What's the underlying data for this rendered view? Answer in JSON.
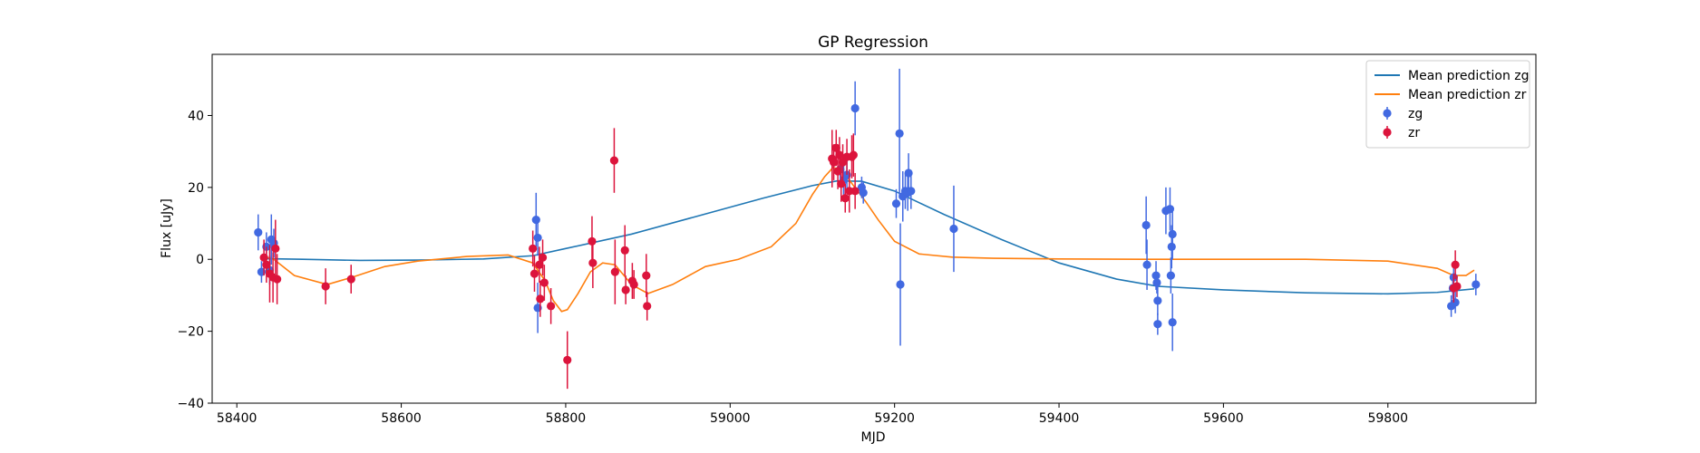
{
  "chart_data": {
    "type": "scatter",
    "title": "GP Regression",
    "xlabel": "MJD",
    "ylabel": "Flux [uJy]",
    "xlim": [
      58370,
      59980
    ],
    "ylim": [
      -40,
      57
    ],
    "xticks": [
      58400,
      58600,
      58800,
      59000,
      59200,
      59400,
      59600,
      59800
    ],
    "yticks": [
      -40,
      -20,
      0,
      20,
      40
    ],
    "legend_position": "upper right",
    "colors": {
      "zg_line": "#1f77b4",
      "zr_line": "#ff7f0e",
      "zg_points": "#4169e1",
      "zr_points": "#dc143c"
    },
    "legend": [
      {
        "label": "Mean prediction zg",
        "kind": "line",
        "series": "zg_line"
      },
      {
        "label": "Mean prediction zr",
        "kind": "line",
        "series": "zr_line"
      },
      {
        "label": "zg",
        "kind": "errorbar",
        "series": "zg_points"
      },
      {
        "label": "zr",
        "kind": "errorbar",
        "series": "zr_points"
      }
    ],
    "lines": [
      {
        "name": "Mean prediction zg",
        "color": "#1f77b4",
        "x": [
          58430,
          58480,
          58550,
          58620,
          58700,
          58760,
          58800,
          58880,
          58960,
          59040,
          59100,
          59130,
          59160,
          59200,
          59260,
          59330,
          59400,
          59470,
          59520,
          59600,
          59700,
          59800,
          59860,
          59905
        ],
        "y": [
          0.2,
          0,
          -0.3,
          -0.2,
          0.1,
          1.0,
          3.0,
          7.0,
          12.0,
          17.0,
          20.5,
          21.8,
          21.7,
          19.0,
          12.5,
          5.5,
          -1.0,
          -5.5,
          -7.5,
          -8.5,
          -9.3,
          -9.6,
          -9.2,
          -8.2
        ]
      },
      {
        "name": "Mean prediction zr",
        "color": "#ff7f0e",
        "x": [
          58430,
          58445,
          58470,
          58510,
          58540,
          58580,
          58620,
          58680,
          58730,
          58760,
          58775,
          58785,
          58795,
          58802,
          58815,
          58830,
          58845,
          58860,
          58880,
          58900,
          58930,
          58970,
          59010,
          59050,
          59080,
          59100,
          59115,
          59125,
          59135,
          59145,
          59155,
          59165,
          59180,
          59200,
          59230,
          59270,
          59320,
          59400,
          59500,
          59600,
          59700,
          59800,
          59860,
          59880,
          59895,
          59905
        ],
        "y": [
          1.0,
          0.0,
          -4.5,
          -7.0,
          -5.0,
          -2.0,
          -0.5,
          0.8,
          1.2,
          -1.0,
          -6.0,
          -11.5,
          -14.5,
          -14.0,
          -9.5,
          -3.5,
          -1.0,
          -1.5,
          -7.0,
          -9.5,
          -7.0,
          -2.0,
          0.0,
          3.5,
          10.0,
          18.0,
          23.0,
          25.5,
          25.0,
          22.0,
          19.0,
          16.0,
          11.0,
          5.0,
          1.5,
          0.6,
          0.3,
          0.1,
          0.0,
          0.0,
          0.0,
          -0.5,
          -2.5,
          -4.5,
          -4.5,
          -3.0
        ]
      }
    ],
    "series": [
      {
        "name": "zg",
        "color": "#4169e1",
        "points": [
          {
            "x": 58426,
            "y": 7.5,
            "err": 5
          },
          {
            "x": 58430,
            "y": -3.5,
            "err": 3
          },
          {
            "x": 58436,
            "y": 3.5,
            "err": 4
          },
          {
            "x": 58440,
            "y": -3.0,
            "err": 4
          },
          {
            "x": 58442,
            "y": 5.5,
            "err": 7
          },
          {
            "x": 58445,
            "y": 4.5,
            "err": 4
          },
          {
            "x": 58764,
            "y": 11.0,
            "err": 7.5
          },
          {
            "x": 58766,
            "y": 6.0,
            "err": 5
          },
          {
            "x": 58766,
            "y": -13.5,
            "err": 7
          },
          {
            "x": 59134,
            "y": 25.0,
            "err": 5
          },
          {
            "x": 59138,
            "y": 22.0,
            "err": 4
          },
          {
            "x": 59142,
            "y": 23.5,
            "err": 5
          },
          {
            "x": 59152,
            "y": 42.0,
            "err": 7.5
          },
          {
            "x": 59160,
            "y": 20.0,
            "err": 3
          },
          {
            "x": 59162,
            "y": 18.5,
            "err": 3
          },
          {
            "x": 59202,
            "y": 15.5,
            "err": 4
          },
          {
            "x": 59206,
            "y": 35.0,
            "err": 18
          },
          {
            "x": 59207,
            "y": -7.0,
            "err": 17
          },
          {
            "x": 59210,
            "y": 17.5,
            "err": 7
          },
          {
            "x": 59213,
            "y": 19.0,
            "err": 5
          },
          {
            "x": 59216,
            "y": 18.5,
            "err": 5
          },
          {
            "x": 59217,
            "y": 24.0,
            "err": 5.5
          },
          {
            "x": 59220,
            "y": 19.0,
            "err": 5
          },
          {
            "x": 59272,
            "y": 8.5,
            "err": 12
          },
          {
            "x": 59506,
            "y": 9.5,
            "err": 8
          },
          {
            "x": 59507,
            "y": -1.5,
            "err": 7
          },
          {
            "x": 59518,
            "y": -4.5,
            "err": 4
          },
          {
            "x": 59519,
            "y": -6.5,
            "err": 3
          },
          {
            "x": 59520,
            "y": -11.5,
            "err": 4
          },
          {
            "x": 59520,
            "y": -18.0,
            "err": 3
          },
          {
            "x": 59530,
            "y": 13.5,
            "err": 6.5
          },
          {
            "x": 59535,
            "y": 14.0,
            "err": 6
          },
          {
            "x": 59536,
            "y": -4.5,
            "err": 5
          },
          {
            "x": 59537,
            "y": 3.5,
            "err": 6
          },
          {
            "x": 59538,
            "y": 7.0,
            "err": 7
          },
          {
            "x": 59538,
            "y": -17.5,
            "err": 8
          },
          {
            "x": 59877,
            "y": -13.0,
            "err": 3
          },
          {
            "x": 59879,
            "y": -8.0,
            "err": 3
          },
          {
            "x": 59880,
            "y": -5.0,
            "err": 3
          },
          {
            "x": 59882,
            "y": -12.0,
            "err": 3
          },
          {
            "x": 59907,
            "y": -7.0,
            "err": 3
          }
        ]
      },
      {
        "name": "zr",
        "color": "#dc143c",
        "points": [
          {
            "x": 58433,
            "y": 0.5,
            "err": 5
          },
          {
            "x": 58436,
            "y": -1.5,
            "err": 5
          },
          {
            "x": 58440,
            "y": -4.0,
            "err": 8
          },
          {
            "x": 58444,
            "y": -5.0,
            "err": 7
          },
          {
            "x": 58447,
            "y": 3.0,
            "err": 8
          },
          {
            "x": 58449,
            "y": -5.5,
            "err": 7
          },
          {
            "x": 58508,
            "y": -7.5,
            "err": 5
          },
          {
            "x": 58539,
            "y": -5.5,
            "err": 4
          },
          {
            "x": 58760,
            "y": 3.0,
            "err": 5
          },
          {
            "x": 58762,
            "y": -4.0,
            "err": 5
          },
          {
            "x": 58768,
            "y": -1.5,
            "err": 5
          },
          {
            "x": 58769,
            "y": -11.0,
            "err": 5
          },
          {
            "x": 58772,
            "y": 0.5,
            "err": 5
          },
          {
            "x": 58774,
            "y": -6.5,
            "err": 5
          },
          {
            "x": 58782,
            "y": -13.0,
            "err": 5
          },
          {
            "x": 58802,
            "y": -28.0,
            "err": 8
          },
          {
            "x": 58832,
            "y": 5.0,
            "err": 7
          },
          {
            "x": 58833,
            "y": -1.0,
            "err": 7
          },
          {
            "x": 58859,
            "y": 27.5,
            "err": 9
          },
          {
            "x": 58860,
            "y": -3.5,
            "err": 9
          },
          {
            "x": 58872,
            "y": 2.5,
            "err": 7
          },
          {
            "x": 58873,
            "y": -8.5,
            "err": 4
          },
          {
            "x": 58881,
            "y": -6.0,
            "err": 5
          },
          {
            "x": 58883,
            "y": -7.0,
            "err": 4
          },
          {
            "x": 58898,
            "y": -4.5,
            "err": 6
          },
          {
            "x": 58899,
            "y": -13.0,
            "err": 4
          },
          {
            "x": 59124,
            "y": 28.0,
            "err": 8
          },
          {
            "x": 59126,
            "y": 27.0,
            "err": 5
          },
          {
            "x": 59129,
            "y": 31.0,
            "err": 5
          },
          {
            "x": 59131,
            "y": 24.5,
            "err": 5
          },
          {
            "x": 59133,
            "y": 29.0,
            "err": 5
          },
          {
            "x": 59135,
            "y": 21.0,
            "err": 5
          },
          {
            "x": 59137,
            "y": 27.0,
            "err": 5
          },
          {
            "x": 59140,
            "y": 17.0,
            "err": 4
          },
          {
            "x": 59142,
            "y": 28.5,
            "err": 5
          },
          {
            "x": 59145,
            "y": 19.0,
            "err": 6
          },
          {
            "x": 59148,
            "y": 28.5,
            "err": 6
          },
          {
            "x": 59150,
            "y": 29.0,
            "err": 6
          },
          {
            "x": 59152,
            "y": 19.0,
            "err": 5
          },
          {
            "x": 59880,
            "y": -8.0,
            "err": 4
          },
          {
            "x": 59882,
            "y": -1.5,
            "err": 4
          },
          {
            "x": 59884,
            "y": -7.5,
            "err": 3
          }
        ]
      }
    ]
  }
}
